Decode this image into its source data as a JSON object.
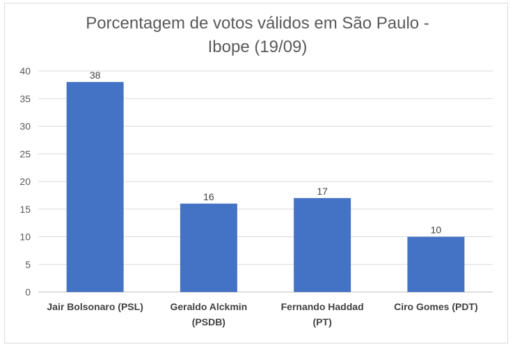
{
  "chart_data": {
    "type": "bar",
    "title_lines": [
      "Porcentagem de votos válidos em São Paulo -",
      "Ibope (19/09)"
    ],
    "categories": [
      [
        "Jair Bolsonaro (PSL)"
      ],
      [
        "Geraldo Alckmin",
        "(PSDB)"
      ],
      [
        "Fernando Haddad",
        "(PT)"
      ],
      [
        "Ciro Gomes (PDT)"
      ]
    ],
    "values": [
      38,
      16,
      17,
      10
    ],
    "data_labels": [
      "38",
      "16",
      "17",
      "10"
    ],
    "yticks": [
      "0",
      "5",
      "10",
      "15",
      "20",
      "25",
      "30",
      "35",
      "40"
    ],
    "ylim": [
      0,
      40
    ],
    "grid": true,
    "legend": "none",
    "colors": {
      "bar": "#4472C4",
      "grid": "#d9d9d9",
      "axis": "#bfbfbf"
    }
  }
}
